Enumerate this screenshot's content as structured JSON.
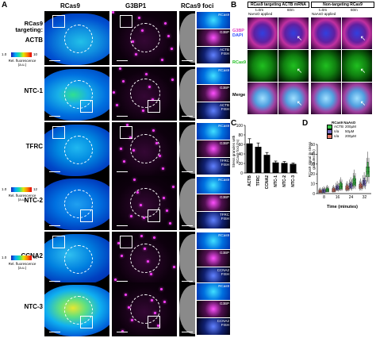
{
  "panelA": {
    "letter": "A",
    "col_headers": [
      "RCas9",
      "G3BP1",
      "RCas9 foci"
    ],
    "targeting_label": "RCas9\ntargeting:",
    "rows": [
      {
        "label": "ACTB",
        "fish": "ACTB\nFISH"
      },
      {
        "label": "NTC-1",
        "fish": "ACTB\nFISH"
      },
      {
        "label": "TFRC",
        "fish": "TFRC\nFISH"
      },
      {
        "label": "NTC-2",
        "fish": "TFRC\nFISH"
      },
      {
        "label": "CCNA2",
        "fish": "CCNA2\nFISH"
      },
      {
        "label": "NTC-3",
        "fish": "CCNA2\nFISH"
      }
    ],
    "inset_labels": {
      "rcas9": "RCas9",
      "g3bp": "G3BP"
    },
    "colorbars": [
      {
        "min": "1.0",
        "max": "10",
        "caption": "Rel. fluorescence\n(a.u.)"
      },
      {
        "min": "1.0",
        "max": "12",
        "caption": "Rel. fluorescence\n(a.u.)"
      },
      {
        "min": "1.0",
        "max": "30",
        "caption": "Rel. fluorescence\n(a.u.)"
      }
    ]
  },
  "panelB": {
    "letter": "B",
    "left_header": "RCas9 targeting ACTB mRNA",
    "right_header": "Non-targeting RCas9",
    "time_labels": [
      "t=0m",
      "60m",
      "t=0m",
      "60m"
    ],
    "applied": "NaAsO applied",
    "row_labels": [
      {
        "l1": "G3BP",
        "l2": "DAPI"
      },
      {
        "l1": "RCas9",
        "l2": ""
      },
      {
        "l1": "Merge",
        "l2": ""
      }
    ]
  },
  "panelC": {
    "letter": "C",
    "ylabel": "Stress granules with\nRCas9 foci (%)",
    "chart_data": {
      "type": "bar",
      "categories": [
        "ACTB",
        "TFRC",
        "CCNA2",
        "NTC-1",
        "NTC-2",
        "NTC-3"
      ],
      "values": [
        62,
        55,
        38,
        22,
        21,
        19
      ],
      "errors": [
        10,
        8,
        5,
        3,
        3,
        2
      ],
      "ylim": [
        0,
        100
      ],
      "yticks": [
        "0",
        "20",
        "40",
        "60",
        "80",
        "100"
      ]
    }
  },
  "panelD": {
    "letter": "D",
    "legend_title": "RCas9 NaAsO",
    "legend": [
      {
        "rcas": "ACTB",
        "naaso": "200µM",
        "color": "#3cc84a"
      },
      {
        "rcas": "n/a",
        "naaso": "50µM",
        "color": "#7a70c8"
      },
      {
        "rcas": "n/a",
        "naaso": "200µM",
        "color": "#e87a6a"
      }
    ],
    "ylabel": "RCas9 signal in stress\ngranules (%)",
    "xlabel": "Time (minutes)",
    "chart_data": {
      "type": "box",
      "x": [
        8,
        16,
        24,
        32
      ],
      "xticks": [
        "8",
        "16",
        "24",
        "32"
      ],
      "ylim": [
        0,
        50
      ],
      "yticks": [
        "0",
        "10",
        "20",
        "30",
        "40",
        "50"
      ],
      "series": [
        {
          "name": "ACTB 200µM",
          "median": [
            4,
            8,
            13,
            26
          ],
          "q1": [
            2,
            5,
            9,
            20
          ],
          "q3": [
            6,
            12,
            18,
            32
          ]
        },
        {
          "name": "n/a 50µM",
          "median": [
            3,
            6,
            9,
            12
          ],
          "q1": [
            1,
            4,
            6,
            9
          ],
          "q3": [
            5,
            9,
            12,
            16
          ]
        },
        {
          "name": "n/a 200µM",
          "median": [
            2,
            4,
            6,
            8
          ],
          "q1": [
            1,
            2,
            4,
            6
          ],
          "q3": [
            4,
            6,
            9,
            11
          ]
        }
      ]
    }
  }
}
